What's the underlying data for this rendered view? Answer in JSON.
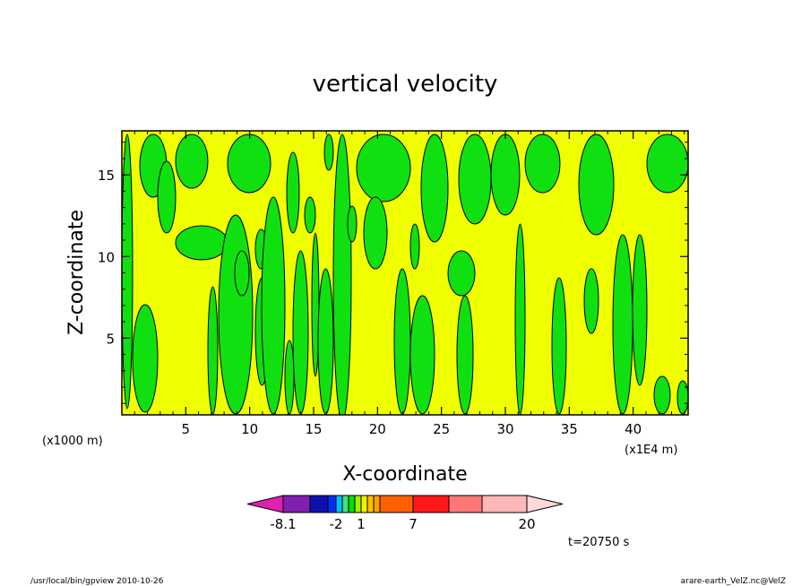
{
  "chart_data": {
    "type": "heatmap",
    "title": "vertical velocity",
    "xlabel": "X-coordinate",
    "ylabel": "Z-coordinate",
    "x_unit_label": "(x1000 m)",
    "x_unit_label_right": "(x1E4 m)",
    "xlim": [
      0,
      44.3
    ],
    "ylim": [
      0.3,
      17.7
    ],
    "x_ticks": [
      "5",
      "10",
      "15",
      "20",
      "25",
      "30",
      "35",
      "40"
    ],
    "y_ticks": [
      "5",
      "10",
      "15"
    ],
    "colorbar": {
      "tick_labels": [
        "-8.1",
        "-2",
        "1",
        "7",
        "20"
      ],
      "colors": [
        "#e020b0",
        "#8020b0",
        "#1010b0",
        "#0030f0",
        "#00c0ff",
        "#40e080",
        "#00e000",
        "#a0f000",
        "#f0f000",
        "#ffc000",
        "#ffa000",
        "#ff6000",
        "#ff1818",
        "#ff7878",
        "#ffb8b8",
        "#ffd8d8"
      ]
    },
    "field_colors": {
      "positive": "#f0ff00",
      "negative": "#10e010",
      "contour": "#000000"
    },
    "time_label": "t=20750  s",
    "footer_left": "/usr/local/bin/gpview  2010-10-26",
    "footer_right": "arare-earth_VelZ.nc@VelZ"
  }
}
